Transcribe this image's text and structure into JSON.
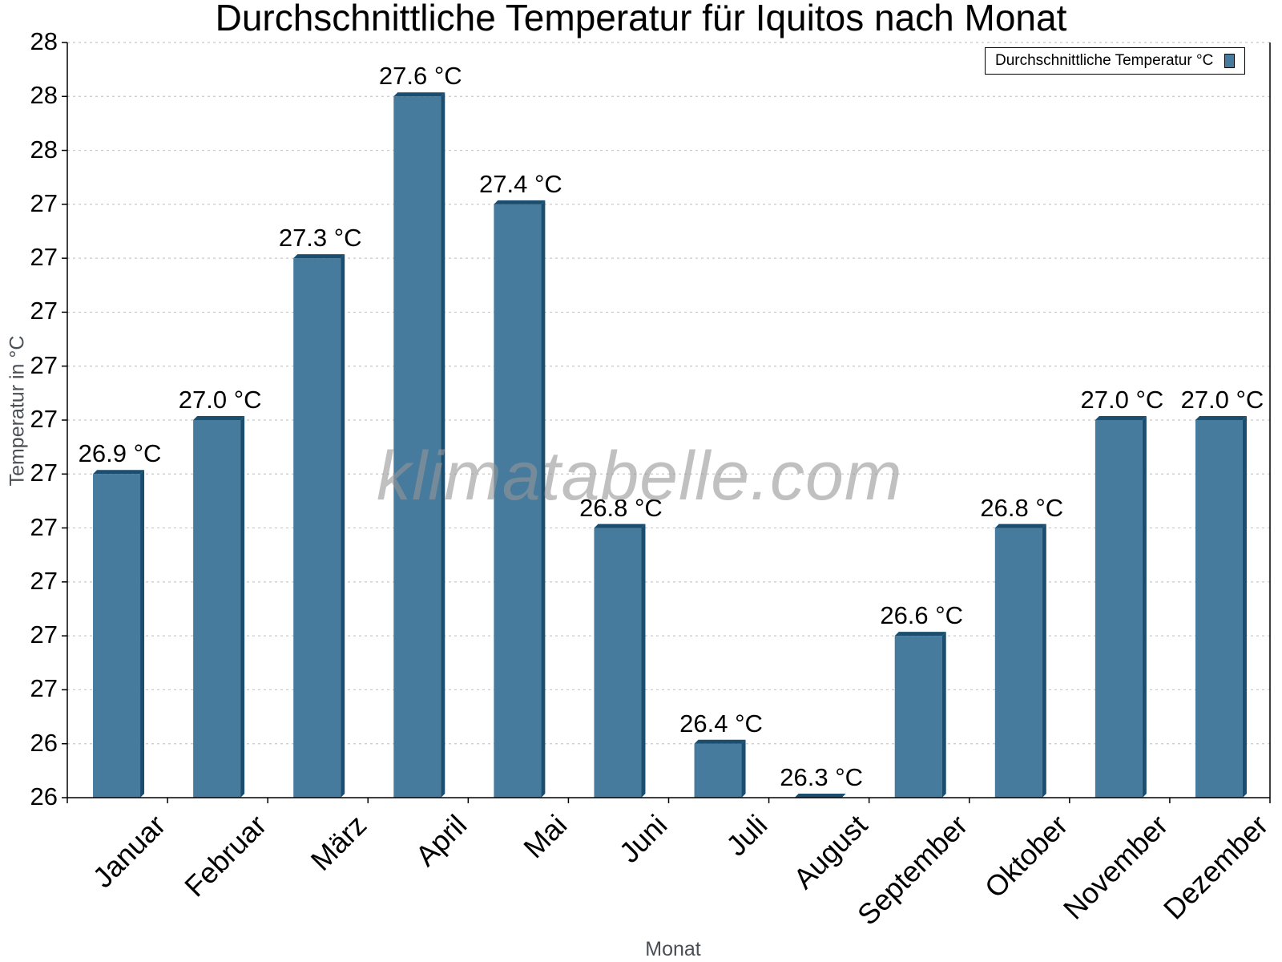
{
  "chart_data": {
    "type": "bar",
    "title": "Durchschnittliche Temperatur für Iquitos nach Monat",
    "xlabel": "Monat",
    "ylabel": "Temperatur in °C",
    "categories": [
      "Januar",
      "Februar",
      "März",
      "April",
      "Mai",
      "Juni",
      "Juli",
      "August",
      "September",
      "Oktober",
      "November",
      "Dezember"
    ],
    "series": [
      {
        "name": "Durchschnittliche Temperatur °C",
        "values": [
          26.9,
          27.0,
          27.3,
          27.6,
          27.4,
          26.8,
          26.4,
          26.3,
          26.6,
          26.8,
          27.0,
          27.0
        ],
        "labels": [
          "26.9 °C",
          "27.0 °C",
          "27.3 °C",
          "27.6 °C",
          "27.4 °C",
          "26.8 °C",
          "26.4 °C",
          "26.3 °C",
          "26.6 °C",
          "26.8 °C",
          "27.0 °C",
          "27.0 °C"
        ],
        "color": "#467b9d"
      }
    ],
    "ylim": [
      26.3,
      27.7
    ],
    "yticks": [
      26.3,
      26.4,
      26.5,
      26.6,
      26.7,
      26.8,
      26.9,
      27.0,
      27.1,
      27.2,
      27.3,
      27.4,
      27.5,
      27.6,
      27.7
    ],
    "ytick_labels": [
      "26",
      "26",
      "27",
      "27",
      "27",
      "27",
      "27",
      "27",
      "27",
      "27",
      "27",
      "27",
      "28",
      "28",
      "28"
    ],
    "grid": true,
    "legend_position": "top-right",
    "watermark": "klimatabelle.com"
  },
  "colors": {
    "bar_face": "#467b9d",
    "bar_edge": "#1a4d6e",
    "grid": "#c8c8c8",
    "axis_title": "#4a4f55"
  }
}
